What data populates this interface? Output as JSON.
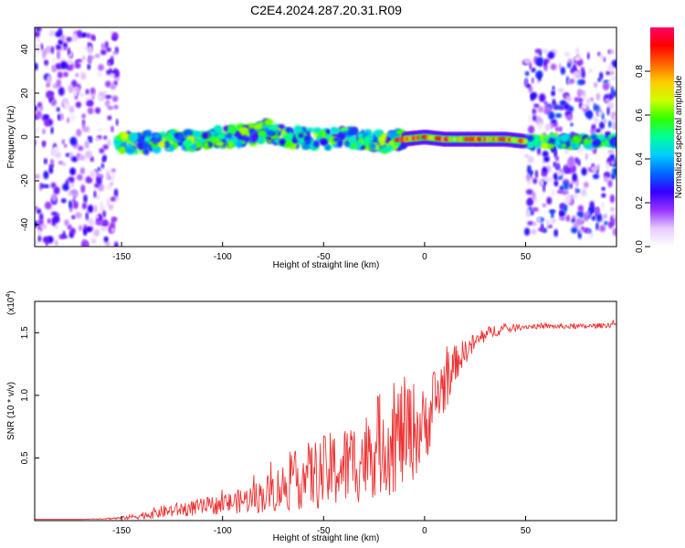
{
  "figure": {
    "title": "C2E4.2024.287.20.31.R09"
  },
  "chart_data": [
    {
      "type": "heatmap",
      "xlabel": "Height of straight line (km)",
      "ylabel": "Frequency (Hz)",
      "xlim": [
        -193,
        95
      ],
      "ylim": [
        -50,
        50
      ],
      "xticks": [
        -150,
        -100,
        -50,
        0,
        50
      ],
      "yticks": [
        -40,
        -20,
        0,
        20,
        40
      ],
      "colorbar": {
        "label": "Normalized spectral amplitude",
        "range": [
          0,
          1
        ],
        "ticks": [
          0.0,
          0.2,
          0.4,
          0.6,
          0.8
        ],
        "colors": [
          "#ffffff",
          "#e6ccff",
          "#9933ff",
          "#3300ff",
          "#0066ff",
          "#00ccff",
          "#00ff99",
          "#33ff00",
          "#ccff00",
          "#ffcc00",
          "#ff6600",
          "#ff0000",
          "#ff0066"
        ]
      },
      "regions": [
        {
          "x": [
            -193,
            -152
          ],
          "y": [
            -50,
            50
          ],
          "amplitude": 0.15
        },
        {
          "x": [
            -152,
            -10
          ],
          "y": [
            -4,
            4
          ],
          "amplitude": 0.45
        },
        {
          "x": [
            -10,
            50
          ],
          "y": [
            -1,
            1
          ],
          "amplitude": 0.85
        },
        {
          "x": [
            50,
            95
          ],
          "y": [
            -45,
            40
          ],
          "amplitude": 0.18
        },
        {
          "x": [
            50,
            95
          ],
          "y": [
            -3,
            1
          ],
          "amplitude": 0.45
        }
      ],
      "ridge": {
        "x": [
          -150,
          -120,
          -100,
          -85,
          -78,
          -70,
          -50,
          -40,
          -20,
          -10,
          0,
          10,
          20,
          30,
          40,
          50,
          60,
          80,
          95
        ],
        "y": [
          -3,
          -2,
          0,
          1,
          3,
          0,
          -1,
          0,
          -2,
          -1,
          0,
          -1,
          -1,
          -1,
          -1,
          -2,
          -2,
          -2,
          -2
        ]
      }
    },
    {
      "type": "line",
      "xlabel": "Height of straight line (km)",
      "ylabel": "SNR (10 * v/v)",
      "multiplier": "(x10^4)",
      "multiplier_base": "(x10",
      "multiplier_exp": "4",
      "multiplier_close": ")",
      "xlim": [
        -193,
        95
      ],
      "ylim": [
        0,
        1.75
      ],
      "xticks": [
        -150,
        -100,
        -50,
        0,
        50
      ],
      "yticks": [
        0.5,
        1.0,
        1.5
      ],
      "series": [
        {
          "color": "#ee3333",
          "x": [
            -193,
            -170,
            -150,
            -140,
            -130,
            -120,
            -110,
            -100,
            -90,
            -80,
            -70,
            -60,
            -50,
            -40,
            -30,
            -25,
            -20,
            -15,
            -10,
            -5,
            0,
            5,
            10,
            15,
            20,
            25,
            30,
            35,
            40,
            50,
            60,
            70,
            80,
            90,
            95
          ],
          "y": [
            0.01,
            0.01,
            0.02,
            0.04,
            0.07,
            0.09,
            0.11,
            0.13,
            0.16,
            0.2,
            0.27,
            0.35,
            0.38,
            0.43,
            0.5,
            0.58,
            0.62,
            0.65,
            0.7,
            0.72,
            0.75,
            0.95,
            1.1,
            1.25,
            1.35,
            1.42,
            1.48,
            1.52,
            1.53,
            1.55,
            1.55,
            1.55,
            1.55,
            1.56,
            1.57
          ],
          "spread": [
            0,
            0,
            0.01,
            0.03,
            0.05,
            0.06,
            0.07,
            0.08,
            0.1,
            0.14,
            0.2,
            0.26,
            0.3,
            0.33,
            0.35,
            0.4,
            0.42,
            0.45,
            0.45,
            0.4,
            0.3,
            0.3,
            0.25,
            0.15,
            0.1,
            0.08,
            0.06,
            0.05,
            0.04,
            0.02,
            0.02,
            0.02,
            0.02,
            0.02,
            0.03
          ]
        }
      ]
    }
  ]
}
